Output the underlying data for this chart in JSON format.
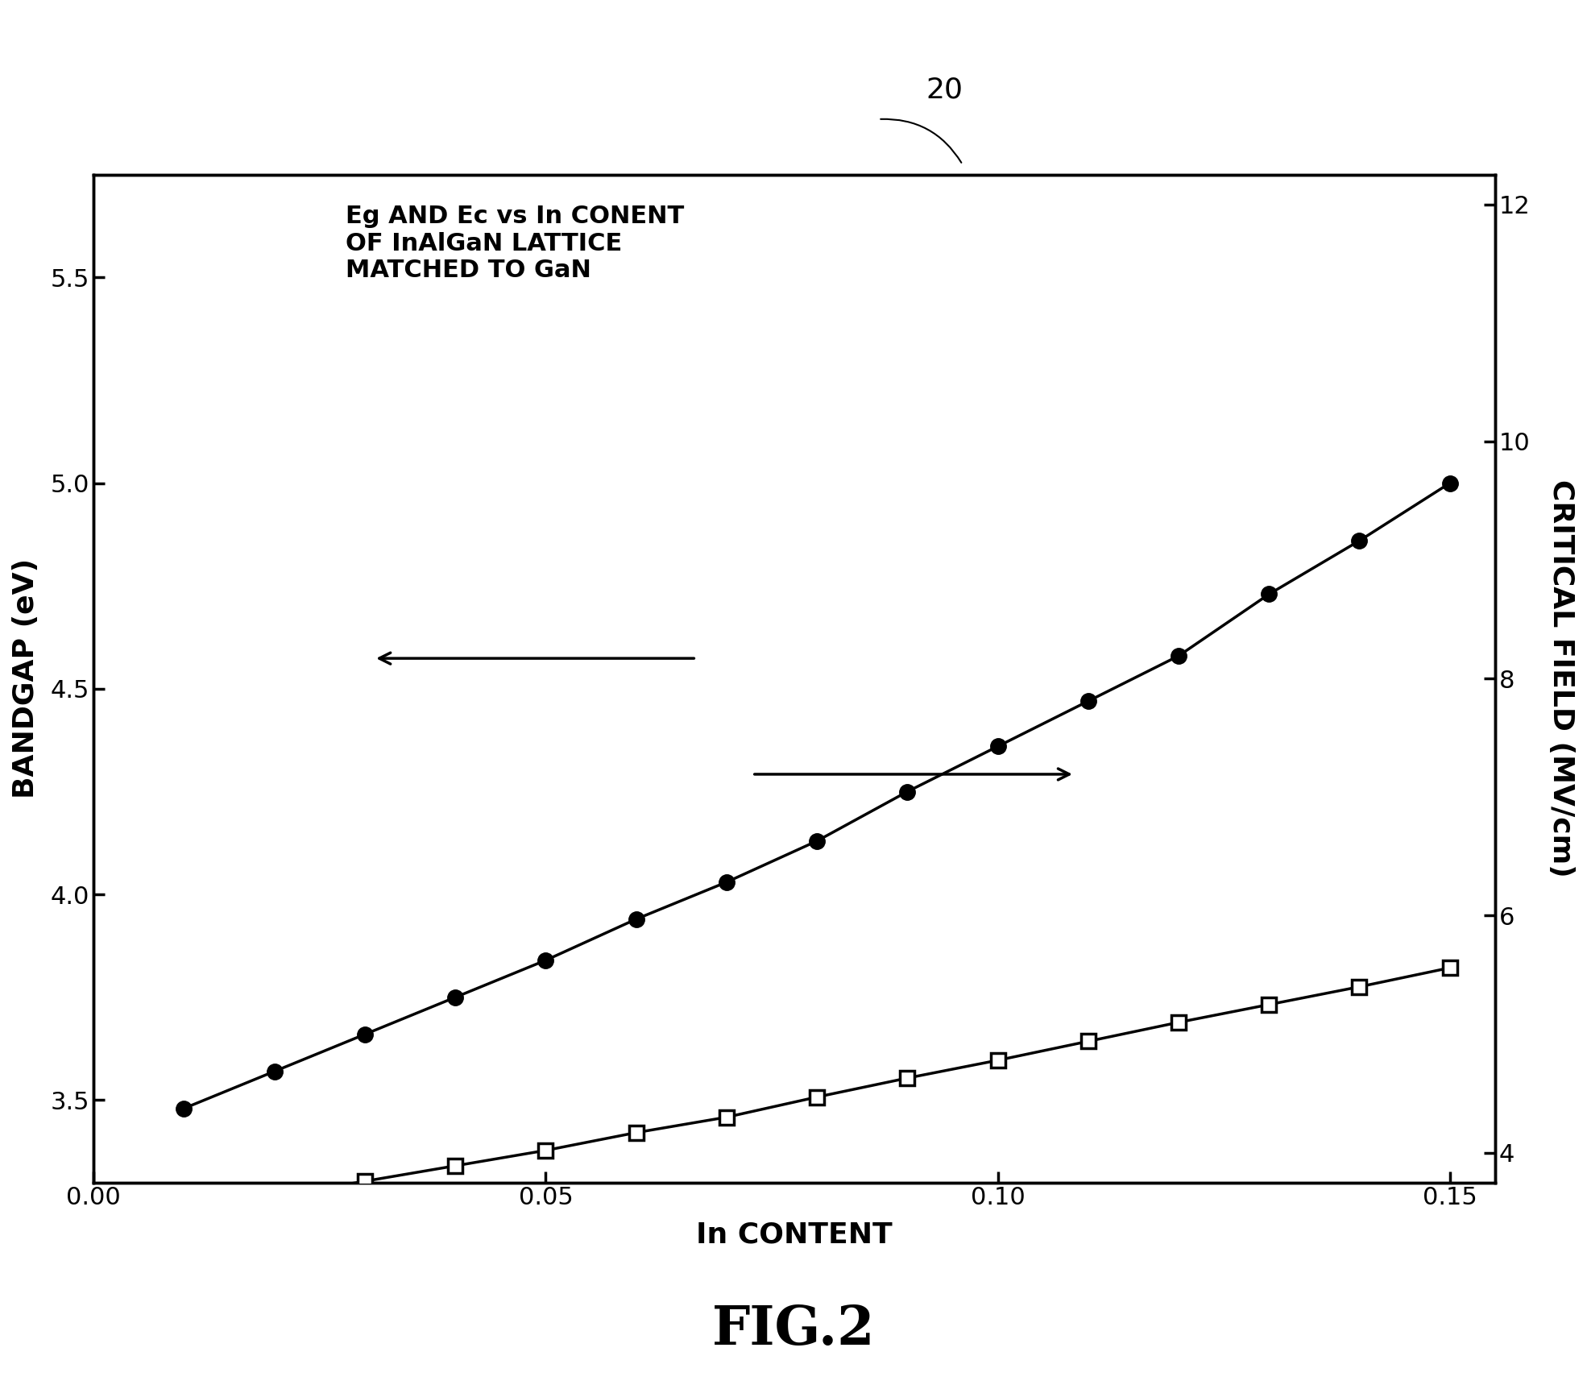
{
  "title": "20",
  "fig_label": "FIG.2",
  "annotation_text": "Eg AND Ec vs In CONENT\nOF InAlGaN LATTICE\nMATCHED TO GaN",
  "xlabel": "In CONTENT",
  "ylabel_left": "BANDGAP (eV)",
  "ylabel_right": "CRITICAL FIELD (MV/cm)",
  "xlim": [
    0.0,
    0.155
  ],
  "ylim_left": [
    3.3,
    5.75
  ],
  "ylim_right": [
    3.75,
    12.25
  ],
  "xticks": [
    0.0,
    0.05,
    0.1,
    0.15
  ],
  "yticks_left": [
    3.5,
    4.0,
    4.5,
    5.0,
    5.5
  ],
  "yticks_right": [
    4,
    6,
    8,
    10,
    12
  ],
  "x_data": [
    0.01,
    0.02,
    0.03,
    0.04,
    0.05,
    0.06,
    0.07,
    0.08,
    0.09,
    0.1,
    0.11,
    0.12,
    0.13,
    0.14,
    0.15
  ],
  "eg_data": [
    3.48,
    3.57,
    3.66,
    3.75,
    3.84,
    3.94,
    4.03,
    4.13,
    4.25,
    4.36,
    4.47,
    4.58,
    4.73,
    4.86,
    5.0
  ],
  "ec_data": [
    3.5,
    3.63,
    3.76,
    3.89,
    4.02,
    4.17,
    4.3,
    4.47,
    4.63,
    4.78,
    4.94,
    5.1,
    5.25,
    5.4,
    5.56
  ],
  "background_color": "#ffffff",
  "line_color": "#000000",
  "fontsize_label": 26,
  "fontsize_tick": 22,
  "fontsize_annotation": 22,
  "fontsize_title": 26,
  "fontsize_fig_label": 48,
  "markersize_circle": 14,
  "markersize_square": 13,
  "linewidth": 2.5
}
